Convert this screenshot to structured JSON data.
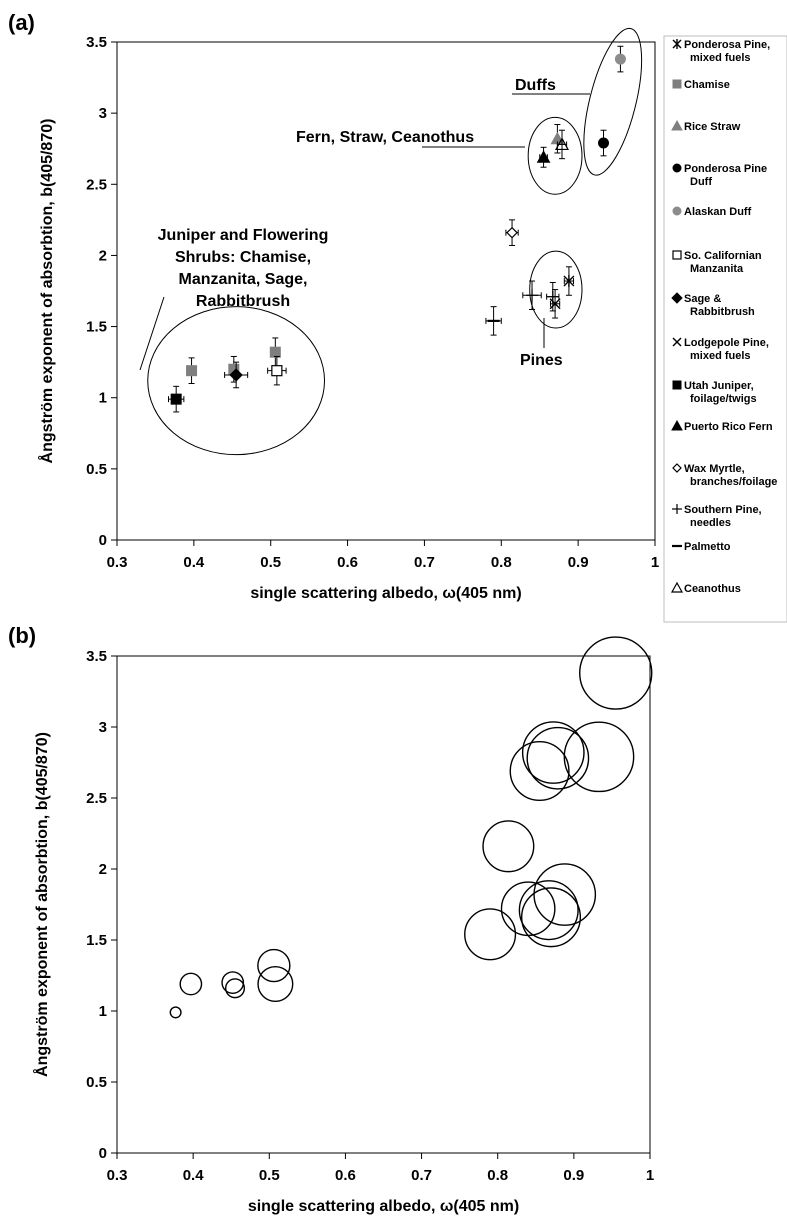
{
  "figure": {
    "panel_a_label": "(a)",
    "panel_b_label": "(b)"
  },
  "chart_data": [
    {
      "type": "scatter",
      "panel": "(a)",
      "xlabel": "single scattering albedo, ω(405 nm)",
      "ylabel": "Ångström exponent of absorbtion, b(405/870)",
      "xlim": [
        0.3,
        1.0
      ],
      "ylim": [
        0,
        3.5
      ],
      "xticks": [
        "0.3",
        "0.4",
        "0.5",
        "0.6",
        "0.7",
        "0.8",
        "0.9",
        "1"
      ],
      "yticks": [
        "0",
        "0.5",
        "1",
        "1.5",
        "2",
        "2.5",
        "3",
        "3.5"
      ],
      "grid": false,
      "legend_position": "right",
      "series": [
        {
          "name": "Ponderosa Pine, mixed fuels",
          "marker": "asterisk",
          "color": "#000000",
          "points": [
            {
              "x": 0.888,
              "y": 1.82,
              "xerr": 0.006,
              "yerr": 0.1
            }
          ]
        },
        {
          "name": "Chamise",
          "marker": "square",
          "color": "#7f7f7f",
          "points": [
            {
              "x": 0.397,
              "y": 1.19,
              "xerr": 0,
              "yerr": 0.09
            },
            {
              "x": 0.452,
              "y": 1.2,
              "xerr": 0,
              "yerr": 0.09
            },
            {
              "x": 0.506,
              "y": 1.32,
              "xerr": 0,
              "yerr": 0.1
            }
          ]
        },
        {
          "name": "Rice Straw",
          "marker": "triangle",
          "color": "#7f7f7f",
          "points": [
            {
              "x": 0.873,
              "y": 2.82,
              "xerr": 0,
              "yerr": 0.1
            }
          ]
        },
        {
          "name": "Ponderosa Pine Duff",
          "marker": "circle",
          "color": "#000000",
          "points": [
            {
              "x": 0.933,
              "y": 2.79,
              "xerr": 0,
              "yerr": 0.09
            }
          ]
        },
        {
          "name": "Alaskan Duff",
          "marker": "circle",
          "color": "#8c8c8c",
          "points": [
            {
              "x": 0.955,
              "y": 3.38,
              "xerr": 0,
              "yerr": 0.09
            }
          ]
        },
        {
          "name": "So. Californian Manzanita",
          "marker": "open-square",
          "color": "#000000",
          "points": [
            {
              "x": 0.508,
              "y": 1.19,
              "xerr": 0.012,
              "yerr": 0.1
            }
          ]
        },
        {
          "name": "Sage & Rabbitbrush",
          "marker": "diamond",
          "color": "#000000",
          "points": [
            {
              "x": 0.455,
              "y": 1.16,
              "xerr": 0.015,
              "yerr": 0.09
            }
          ]
        },
        {
          "name": "Lodgepole Pine, mixed fuels",
          "marker": "x",
          "color": "#000000",
          "points": [
            {
              "x": 0.87,
              "y": 1.66,
              "xerr": 0.006,
              "yerr": 0.1
            }
          ]
        },
        {
          "name": "Utah Juniper, foilage/twigs",
          "marker": "square",
          "color": "#000000",
          "points": [
            {
              "x": 0.377,
              "y": 0.99,
              "xerr": 0.01,
              "yerr": 0.09
            }
          ]
        },
        {
          "name": "Puerto Rico Fern",
          "marker": "triangle",
          "color": "#000000",
          "points": [
            {
              "x": 0.855,
              "y": 2.69,
              "xerr": 0.005,
              "yerr": 0.07
            }
          ]
        },
        {
          "name": "Wax Myrtle, branches/foilage",
          "marker": "open-diamond",
          "color": "#000000",
          "points": [
            {
              "x": 0.814,
              "y": 2.16,
              "xerr": 0.008,
              "yerr": 0.09
            }
          ]
        },
        {
          "name": "Southern Pine, needles",
          "marker": "plus",
          "color": "#000000",
          "points": [
            {
              "x": 0.84,
              "y": 1.72,
              "xerr": 0.012,
              "yerr": 0.1
            },
            {
              "x": 0.867,
              "y": 1.71,
              "xerr": 0.008,
              "yerr": 0.1
            }
          ]
        },
        {
          "name": "Palmetto",
          "marker": "dash",
          "color": "#000000",
          "points": [
            {
              "x": 0.79,
              "y": 1.54,
              "xerr": 0.01,
              "yerr": 0.1
            }
          ]
        },
        {
          "name": "Ceanothus",
          "marker": "open-triangle",
          "color": "#000000",
          "points": [
            {
              "x": 0.879,
              "y": 2.78,
              "xerr": 0.006,
              "yerr": 0.1
            }
          ]
        }
      ],
      "annotations": [
        {
          "text_lines": [
            "Juniper and Flowering",
            "Shrubs: Chamise,",
            "Manzanita, Sage,",
            "Rabbitbrush"
          ],
          "ellipse": {
            "cx": 0.455,
            "cy": 1.12,
            "rx": 0.115,
            "ry": 0.52
          }
        },
        {
          "text_lines": [
            "Duffs"
          ],
          "ellipse": {
            "cx": 0.945,
            "cy": 3.08,
            "rx": 0.03,
            "ry": 0.53,
            "rotation": 14
          }
        },
        {
          "text_lines": [
            "Fern, Straw, Ceanothus"
          ],
          "ellipse": {
            "cx": 0.87,
            "cy": 2.7,
            "rx": 0.035,
            "ry": 0.27
          }
        },
        {
          "text_lines": [
            "Pines"
          ],
          "ellipse": {
            "cx": 0.871,
            "cy": 1.76,
            "rx": 0.034,
            "ry": 0.27
          }
        }
      ]
    },
    {
      "type": "scatter",
      "panel": "(b)",
      "marker": "open-circle",
      "xlabel": "single scattering albedo, ω(405 nm)",
      "ylabel": "Ångström exponent of absorbtion, b(405/870)",
      "xlim": [
        0.3,
        1.0
      ],
      "ylim": [
        0,
        3.5
      ],
      "xticks": [
        "0.3",
        "0.4",
        "0.5",
        "0.6",
        "0.7",
        "0.8",
        "0.9",
        "1"
      ],
      "yticks": [
        "0",
        "0.5",
        "1",
        "1.5",
        "2",
        "2.5",
        "3",
        "3.5"
      ],
      "grid": false,
      "points": [
        {
          "x": 0.377,
          "y": 0.99,
          "size": 0.2
        },
        {
          "x": 0.397,
          "y": 1.19,
          "size": 0.4
        },
        {
          "x": 0.452,
          "y": 1.2,
          "size": 0.4
        },
        {
          "x": 0.455,
          "y": 1.16,
          "size": 0.35
        },
        {
          "x": 0.506,
          "y": 1.32,
          "size": 0.6
        },
        {
          "x": 0.508,
          "y": 1.19,
          "size": 0.65
        },
        {
          "x": 0.79,
          "y": 1.54,
          "size": 0.95
        },
        {
          "x": 0.814,
          "y": 2.16,
          "size": 0.95
        },
        {
          "x": 0.84,
          "y": 1.72,
          "size": 1.0
        },
        {
          "x": 0.855,
          "y": 2.69,
          "size": 1.1
        },
        {
          "x": 0.867,
          "y": 1.71,
          "size": 1.1
        },
        {
          "x": 0.87,
          "y": 1.66,
          "size": 1.1
        },
        {
          "x": 0.873,
          "y": 2.82,
          "size": 1.15
        },
        {
          "x": 0.879,
          "y": 2.78,
          "size": 1.15
        },
        {
          "x": 0.888,
          "y": 1.82,
          "size": 1.15
        },
        {
          "x": 0.933,
          "y": 2.79,
          "size": 1.3
        },
        {
          "x": 0.955,
          "y": 3.38,
          "size": 1.35
        }
      ]
    }
  ]
}
